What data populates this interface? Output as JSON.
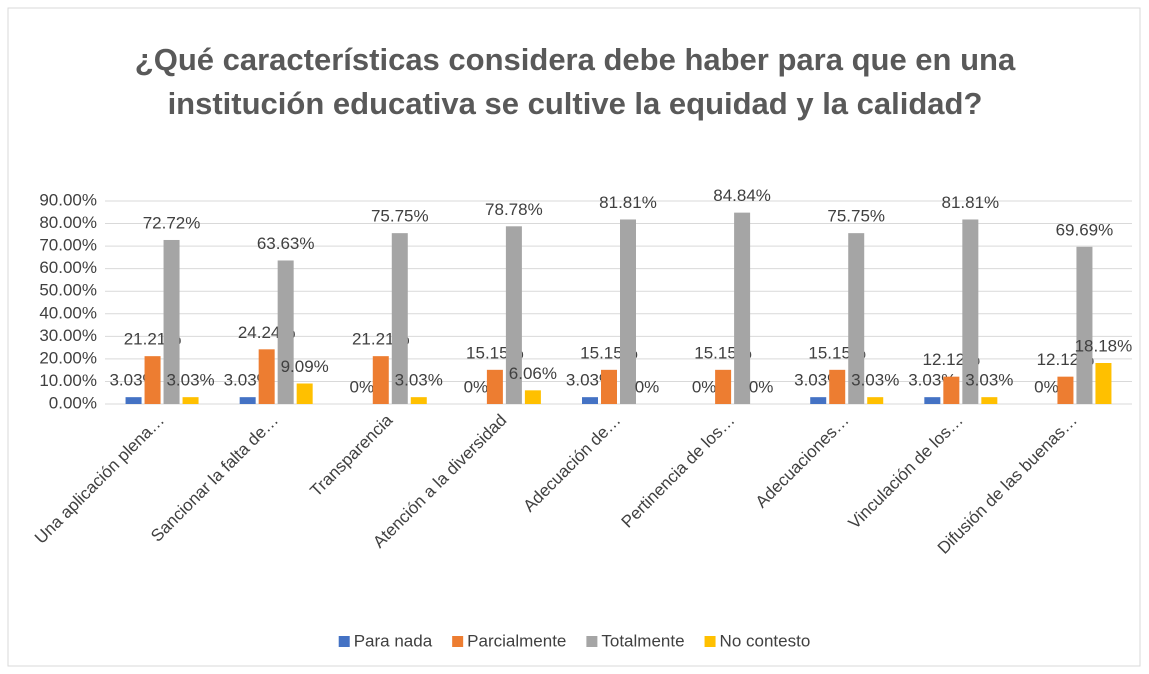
{
  "chart_data": {
    "type": "bar",
    "title": "¿Qué características considera debe haber para que en una institución educativa se cultive la equidad y la calidad?",
    "categories": [
      "Una aplicación plena…",
      "Sancionar la falta de…",
      "Transparencia",
      "Atención a la diversidad",
      "Adecuación de…",
      "Pertinencia de los…",
      "Adecuaciones…",
      "Vinculación de los…",
      "Difusión de las buenas…"
    ],
    "series": [
      {
        "name": "Para nada",
        "color": "#4472c4",
        "values": [
          3.03,
          3.03,
          0,
          0,
          3.03,
          0,
          3.03,
          3.03,
          0
        ],
        "value_labels": [
          "3.03%",
          "3.03%",
          "0%",
          "0%",
          "3.03%",
          "0%",
          "3.03%",
          "3.03%",
          "0%"
        ]
      },
      {
        "name": "Parcialmente",
        "color": "#ed7d31",
        "values": [
          21.21,
          24.24,
          21.21,
          15.15,
          15.15,
          15.15,
          15.15,
          12.12,
          12.12
        ],
        "value_labels": [
          "21.21%",
          "24.24%",
          "21.21%",
          "15.15%",
          "15.15%",
          "15.15%",
          "15.15%",
          "12.12%",
          "12.12%"
        ]
      },
      {
        "name": "Totalmente",
        "color": "#a5a5a5",
        "values": [
          72.72,
          63.63,
          75.75,
          78.78,
          81.81,
          84.84,
          75.75,
          81.81,
          69.69
        ],
        "value_labels": [
          "72.72%",
          "63.63%",
          "75.75%",
          "78.78%",
          "81.81%",
          "84.84%",
          "75.75%",
          "81.81%",
          "69.69%"
        ]
      },
      {
        "name": "No contesto",
        "color": "#ffc000",
        "values": [
          3.03,
          9.09,
          3.03,
          6.06,
          0,
          0,
          3.03,
          3.03,
          18.18
        ],
        "value_labels": [
          "3.03%",
          "9.09%",
          "3.03%",
          "6.06%",
          "0%",
          "0%",
          "3.03%",
          "3.03%",
          "18.18%"
        ]
      }
    ],
    "ylim": [
      0,
      90
    ],
    "yticks": [
      {
        "value": 0,
        "label": "0.00%"
      },
      {
        "value": 10,
        "label": "10.00%"
      },
      {
        "value": 20,
        "label": "20.00%"
      },
      {
        "value": 30,
        "label": "30.00%"
      },
      {
        "value": 40,
        "label": "40.00%"
      },
      {
        "value": 50,
        "label": "50.00%"
      },
      {
        "value": 60,
        "label": "60.00%"
      },
      {
        "value": 70,
        "label": "70.00%"
      },
      {
        "value": 80,
        "label": "80.00%"
      },
      {
        "value": 90,
        "label": "90.00%"
      }
    ],
    "grid": true,
    "legend": "bottom"
  }
}
